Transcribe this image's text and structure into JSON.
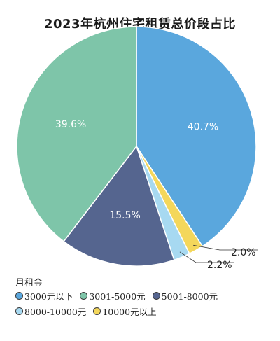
{
  "chart_data": {
    "type": "pie",
    "title": "2023年杭州住宅租赁总价段占比",
    "legend_title": "月租金",
    "legend_position": "bottom-left",
    "slices": [
      {
        "name": "3000元以下",
        "value": 40.7,
        "label": "40.7%",
        "color": "#5aa7dd"
      },
      {
        "name": "10000元以上",
        "value": 2.0,
        "label": "2.0%",
        "color": "#f4d75b"
      },
      {
        "name": "8000-10000元",
        "value": 2.2,
        "label": "2.2%",
        "color": "#a7d9f1"
      },
      {
        "name": "5001-8000元",
        "value": 15.5,
        "label": "15.5%",
        "color": "#55658f"
      },
      {
        "name": "3001-5000元",
        "value": 39.6,
        "label": "39.6%",
        "color": "#7ec5a9"
      }
    ],
    "legend_rows": [
      [
        "3000元以下",
        "3001-5000元",
        "5001-8000元"
      ],
      [
        "8000-10000元",
        "10000元以上"
      ]
    ]
  }
}
